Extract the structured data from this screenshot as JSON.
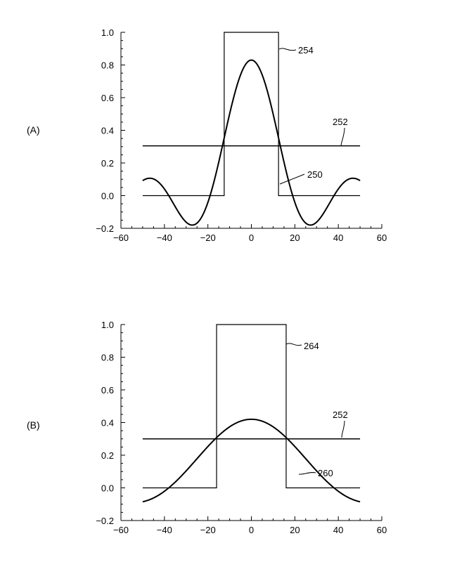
{
  "chart_data": [
    {
      "type": "line",
      "panel_label": "(A)",
      "xlim": [
        -60,
        60
      ],
      "ylim": [
        -0.2,
        1.0
      ],
      "xticks": [
        "−60",
        "−40",
        "−20",
        "0",
        "20",
        "40",
        "60"
      ],
      "yticks": [
        "1.0",
        "0.8",
        "0.6",
        "0.4",
        "0.2",
        "0.0",
        "−0.2"
      ],
      "series": [
        {
          "ref": "250",
          "kind": "sinc",
          "peak": 0.83,
          "zero_at": 19,
          "x_range": [
            -50,
            50
          ]
        },
        {
          "ref": "252",
          "kind": "constant",
          "value": 0.305,
          "x_range": [
            -50,
            50
          ]
        },
        {
          "ref": "254",
          "kind": "rect",
          "edges": [
            -12.5,
            12.5
          ],
          "high": 1.0,
          "low": 0.0,
          "x_range": [
            -50,
            50
          ]
        }
      ],
      "annotations": [
        "254",
        "252",
        "250"
      ]
    },
    {
      "type": "line",
      "panel_label": "(B)",
      "xlim": [
        -60,
        60
      ],
      "ylim": [
        -0.2,
        1.0
      ],
      "xticks": [
        "−60",
        "−40",
        "−20",
        "0",
        "20",
        "40",
        "60"
      ],
      "yticks": [
        "1.0",
        "0.8",
        "0.6",
        "0.4",
        "0.2",
        "0.0",
        "−0.2"
      ],
      "series": [
        {
          "ref": "260",
          "kind": "sinc",
          "peak": 0.42,
          "zero_at": 38,
          "x_range": [
            -50,
            50
          ]
        },
        {
          "ref": "252",
          "kind": "constant",
          "value": 0.3,
          "x_range": [
            -50,
            50
          ]
        },
        {
          "ref": "264",
          "kind": "rect",
          "edges": [
            -16,
            16
          ],
          "high": 1.0,
          "low": 0.0,
          "x_range": [
            -50,
            50
          ]
        }
      ],
      "annotations": [
        "264",
        "252",
        "260"
      ]
    }
  ]
}
